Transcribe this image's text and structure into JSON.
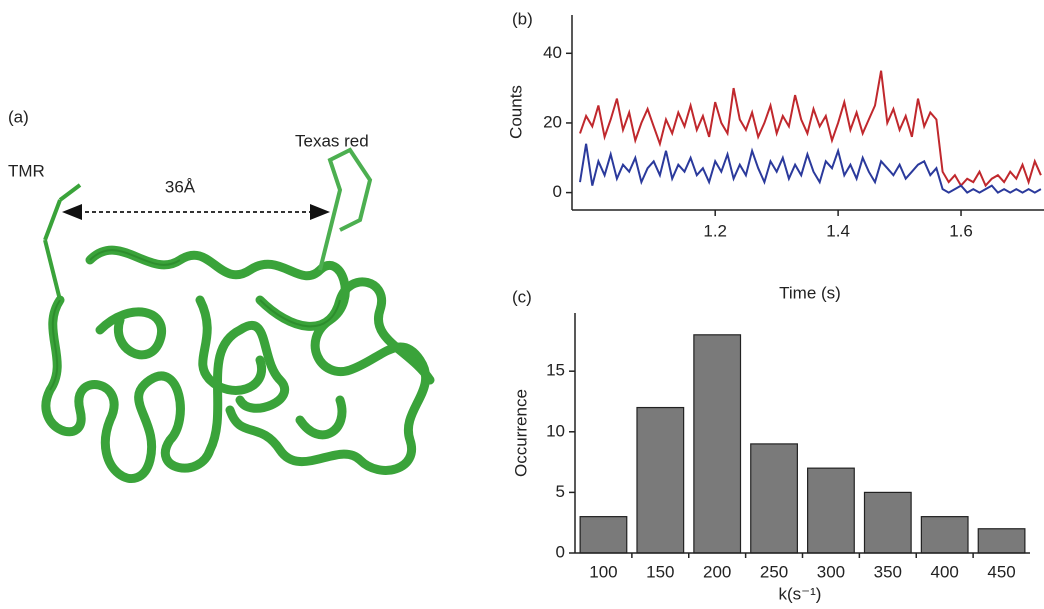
{
  "panel_a": {
    "label": "(a)",
    "donor": "TMR",
    "acceptor": "Texas red",
    "distance": "36Å"
  },
  "chart_data": [
    {
      "type": "line",
      "panel": "(b)",
      "ylabel": "Counts",
      "xlabel": "Time (s)",
      "xlim": [
        0.967,
        1.735
      ],
      "ylim": [
        -5,
        51
      ],
      "xticks": [
        1.2,
        1.4,
        1.6
      ],
      "yticks": [
        0,
        20,
        40
      ],
      "x": [
        0.98,
        0.99,
        1,
        1.01,
        1.02,
        1.03,
        1.04,
        1.05,
        1.06,
        1.07,
        1.08,
        1.09,
        1.1,
        1.11,
        1.12,
        1.13,
        1.14,
        1.15,
        1.16,
        1.17,
        1.18,
        1.19,
        1.2,
        1.21,
        1.22,
        1.23,
        1.24,
        1.25,
        1.26,
        1.27,
        1.28,
        1.29,
        1.3,
        1.31,
        1.32,
        1.33,
        1.34,
        1.35,
        1.36,
        1.37,
        1.38,
        1.39,
        1.4,
        1.41,
        1.42,
        1.43,
        1.44,
        1.45,
        1.46,
        1.47,
        1.48,
        1.49,
        1.5,
        1.51,
        1.52,
        1.53,
        1.54,
        1.55,
        1.56,
        1.57,
        1.58,
        1.59,
        1.6,
        1.61,
        1.62,
        1.63,
        1.64,
        1.65,
        1.66,
        1.67,
        1.68,
        1.69,
        1.7,
        1.71,
        1.72,
        1.73
      ],
      "series": [
        {
          "color": "#c0282d",
          "values": [
            17,
            22,
            19,
            25,
            16,
            21,
            27,
            18,
            23,
            15,
            20,
            24,
            19,
            14,
            21,
            17,
            23,
            19,
            25,
            18,
            22,
            16,
            26,
            20,
            17,
            30,
            21,
            18,
            23,
            16,
            20,
            25,
            17,
            22,
            19,
            28,
            21,
            17,
            24,
            19,
            22,
            15,
            20,
            26,
            18,
            23,
            17,
            21,
            25,
            35,
            20,
            24,
            18,
            22,
            16,
            27,
            19,
            23,
            21,
            6,
            3,
            5,
            2,
            4,
            3,
            6,
            2,
            4,
            5,
            3,
            6,
            4,
            8,
            3,
            9,
            5
          ]
        },
        {
          "color": "#2b3a9c",
          "values": [
            3,
            14,
            2,
            9,
            5,
            11,
            4,
            8,
            6,
            10,
            3,
            7,
            9,
            5,
            12,
            4,
            8,
            6,
            10,
            5,
            7,
            3,
            9,
            6,
            11,
            4,
            8,
            5,
            12,
            7,
            3,
            9,
            6,
            10,
            4,
            8,
            5,
            11,
            6,
            3,
            9,
            7,
            12,
            5,
            8,
            4,
            10,
            6,
            3,
            9,
            7,
            5,
            8,
            4,
            6,
            8,
            9,
            5,
            7,
            1,
            0,
            1,
            2,
            0,
            1,
            0,
            1,
            2,
            0,
            1,
            0,
            1,
            0,
            1,
            0,
            1
          ]
        }
      ]
    },
    {
      "type": "bar",
      "panel": "(c)",
      "ylabel": "Occurrence",
      "xlabel": "k(s⁻¹)",
      "categories": [
        "100",
        "150",
        "200",
        "250",
        "300",
        "350",
        "400",
        "450"
      ],
      "values": [
        3,
        12,
        18,
        9,
        7,
        5,
        3,
        2
      ],
      "color": "#7a7a7a",
      "ylim": [
        0,
        19.8
      ],
      "yticks": [
        0,
        5,
        10,
        15
      ]
    }
  ]
}
